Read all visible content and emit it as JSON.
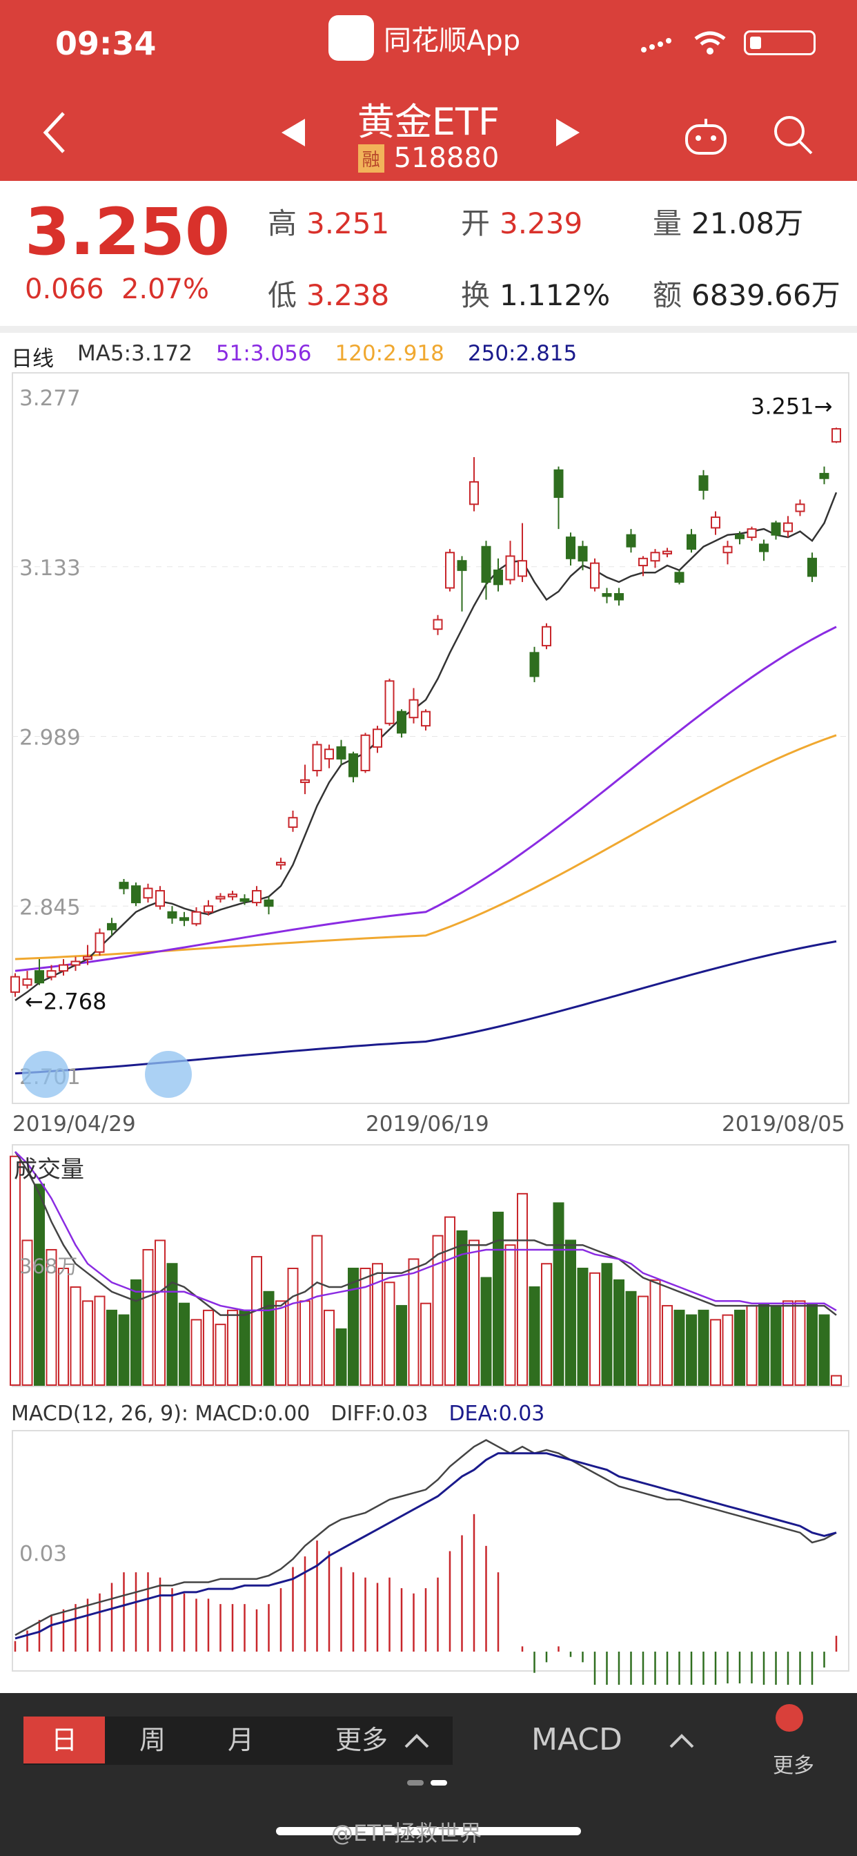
{
  "status": {
    "time": "09:34",
    "app_name": "同花顺App"
  },
  "header": {
    "title": "黄金ETF",
    "code": "518880",
    "rong_badge": "融"
  },
  "quote": {
    "price": "3.250",
    "change": "0.066",
    "change_pct": "2.07%",
    "high_label": "高",
    "high": "3.251",
    "open_label": "开",
    "open": "3.239",
    "volume_label": "量",
    "volume": "21.08万",
    "low_label": "低",
    "low": "3.238",
    "turnover_label": "换",
    "turnover": "1.112%",
    "amount_label": "额",
    "amount": "6839.66万"
  },
  "ma_legend": {
    "period": "日线",
    "ma5": "MA5:3.172",
    "ma51": "51:3.056",
    "ma120": "120:2.918",
    "ma250": "250:2.815",
    "colors": {
      "ma5": "#333333",
      "ma51": "#8a2be2",
      "ma120": "#f0a830",
      "ma250": "#1a1a8c"
    }
  },
  "chart_data": [
    {
      "type": "candlestick",
      "title": "日线",
      "y_ticks": [
        "3.277",
        "3.133",
        "2.989",
        "2.845",
        "2.701"
      ],
      "ylim": [
        2.701,
        3.277
      ],
      "high_marker": "3.251→",
      "low_marker": "←2.768",
      "dates": [
        "2019/04/29",
        "2019/06/19",
        "2019/08/05"
      ],
      "candles": [
        [
          2.772,
          2.785,
          2.788,
          2.768
        ],
        [
          2.778,
          2.783,
          2.79,
          2.775
        ],
        [
          2.79,
          2.78,
          2.8,
          2.778
        ],
        [
          2.785,
          2.79,
          2.795,
          2.782
        ],
        [
          2.79,
          2.795,
          2.8,
          2.786
        ],
        [
          2.795,
          2.798,
          2.802,
          2.79
        ],
        [
          2.8,
          2.802,
          2.812,
          2.795
        ],
        [
          2.806,
          2.822,
          2.826,
          2.803
        ],
        [
          2.83,
          2.825,
          2.835,
          2.82
        ],
        [
          2.865,
          2.86,
          2.868,
          2.855
        ],
        [
          2.862,
          2.848,
          2.865,
          2.845
        ],
        [
          2.852,
          2.86,
          2.864,
          2.848
        ],
        [
          2.845,
          2.858,
          2.862,
          2.842
        ],
        [
          2.84,
          2.835,
          2.845,
          2.83
        ],
        [
          2.835,
          2.833,
          2.84,
          2.828
        ],
        [
          2.83,
          2.84,
          2.844,
          2.828
        ],
        [
          2.84,
          2.845,
          2.85,
          2.837
        ],
        [
          2.852,
          2.853,
          2.856,
          2.848
        ],
        [
          2.853,
          2.855,
          2.858,
          2.85
        ],
        [
          2.851,
          2.85,
          2.855,
          2.846
        ],
        [
          2.848,
          2.858,
          2.862,
          2.845
        ],
        [
          2.85,
          2.845,
          2.853,
          2.838
        ],
        [
          2.88,
          2.882,
          2.886,
          2.876
        ],
        [
          2.912,
          2.92,
          2.926,
          2.908
        ],
        [
          2.95,
          2.952,
          2.965,
          2.94
        ],
        [
          2.96,
          2.982,
          2.985,
          2.955
        ],
        [
          2.97,
          2.978,
          2.982,
          2.962
        ],
        [
          2.98,
          2.97,
          2.986,
          2.965
        ],
        [
          2.974,
          2.955,
          2.976,
          2.95
        ],
        [
          2.96,
          2.99,
          2.992,
          2.958
        ],
        [
          2.98,
          2.995,
          2.998,
          2.975
        ],
        [
          3.0,
          3.036,
          3.038,
          2.998
        ],
        [
          3.01,
          2.992,
          3.012,
          2.988
        ],
        [
          3.005,
          3.02,
          3.03,
          3.0
        ],
        [
          2.998,
          3.01,
          3.012,
          2.994
        ],
        [
          3.08,
          3.088,
          3.092,
          3.075
        ],
        [
          3.115,
          3.145,
          3.148,
          3.112
        ],
        [
          3.138,
          3.13,
          3.142,
          3.095
        ],
        [
          3.186,
          3.205,
          3.226,
          3.18
        ],
        [
          3.15,
          3.12,
          3.155,
          3.105
        ],
        [
          3.13,
          3.118,
          3.14,
          3.112
        ],
        [
          3.122,
          3.142,
          3.155,
          3.118
        ],
        [
          3.125,
          3.138,
          3.17,
          3.12
        ],
        [
          3.06,
          3.04,
          3.065,
          3.035
        ],
        [
          3.066,
          3.082,
          3.085,
          3.063
        ],
        [
          3.215,
          3.192,
          3.218,
          3.165
        ],
        [
          3.158,
          3.14,
          3.162,
          3.134
        ],
        [
          3.15,
          3.138,
          3.155,
          3.13
        ],
        [
          3.115,
          3.136,
          3.14,
          3.112
        ],
        [
          3.11,
          3.108,
          3.115,
          3.102
        ],
        [
          3.11,
          3.105,
          3.115,
          3.1
        ],
        [
          3.16,
          3.15,
          3.165,
          3.145
        ],
        [
          3.134,
          3.14,
          3.142,
          3.125
        ],
        [
          3.138,
          3.145,
          3.148,
          3.132
        ],
        [
          3.144,
          3.146,
          3.149,
          3.141
        ],
        [
          3.128,
          3.12,
          3.13,
          3.118
        ],
        [
          3.16,
          3.148,
          3.165,
          3.145
        ],
        [
          3.21,
          3.198,
          3.215,
          3.19
        ],
        [
          3.166,
          3.175,
          3.18,
          3.16
        ],
        [
          3.145,
          3.15,
          3.155,
          3.135
        ],
        [
          3.16,
          3.157,
          3.163,
          3.152
        ],
        [
          3.158,
          3.165,
          3.167,
          3.155
        ],
        [
          3.152,
          3.146,
          3.156,
          3.138
        ],
        [
          3.17,
          3.16,
          3.172,
          3.156
        ],
        [
          3.163,
          3.17,
          3.176,
          3.158
        ],
        [
          3.18,
          3.186,
          3.19,
          3.176
        ],
        [
          3.14,
          3.125,
          3.145,
          3.12
        ],
        [
          3.212,
          3.208,
          3.218,
          3.203
        ],
        [
          3.239,
          3.25,
          3.251,
          3.238
        ]
      ],
      "ma5": [
        2.765,
        2.772,
        2.78,
        2.785,
        2.79,
        2.795,
        2.8,
        2.81,
        2.82,
        2.83,
        2.84,
        2.845,
        2.849,
        2.847,
        2.843,
        2.84,
        2.838,
        2.842,
        2.845,
        2.848,
        2.85,
        2.853,
        2.862,
        2.88,
        2.905,
        2.93,
        2.95,
        2.965,
        2.97,
        2.975,
        2.985,
        2.995,
        3.005,
        3.012,
        3.02,
        3.038,
        3.06,
        3.08,
        3.1,
        3.118,
        3.13,
        3.137,
        3.138,
        3.12,
        3.105,
        3.112,
        3.125,
        3.134,
        3.13,
        3.124,
        3.12,
        3.125,
        3.128,
        3.128,
        3.134,
        3.13,
        3.14,
        3.15,
        3.155,
        3.16,
        3.161,
        3.163,
        3.165,
        3.16,
        3.158,
        3.163,
        3.155,
        3.17,
        3.196
      ],
      "ma51": [
        2.79,
        2.84,
        3.082
      ],
      "ma120": [
        2.8,
        2.82,
        2.99
      ],
      "ma250": [
        2.703,
        2.73,
        2.815
      ]
    },
    {
      "type": "bar",
      "title": "成交量",
      "y_ticks": [
        "368万"
      ],
      "values": [
        0.98,
        0.62,
        0.86,
        0.58,
        0.5,
        0.42,
        0.36,
        0.38,
        0.32,
        0.3,
        0.45,
        0.58,
        0.62,
        0.52,
        0.35,
        0.28,
        0.32,
        0.26,
        0.32,
        0.32,
        0.55,
        0.4,
        0.36,
        0.5,
        0.36,
        0.64,
        0.32,
        0.24,
        0.5,
        0.5,
        0.52,
        0.44,
        0.34,
        0.54,
        0.35,
        0.64,
        0.72,
        0.66,
        0.62,
        0.46,
        0.74,
        0.6,
        0.82,
        0.42,
        0.52,
        0.78,
        0.62,
        0.5,
        0.48,
        0.52,
        0.45,
        0.4,
        0.38,
        0.45,
        0.34,
        0.32,
        0.3,
        0.32,
        0.28,
        0.3,
        0.32,
        0.34,
        0.35,
        0.34,
        0.36,
        0.36,
        0.35,
        0.3,
        0.04
      ],
      "ma_a": [
        1.0,
        0.92,
        0.82,
        0.7,
        0.6,
        0.52,
        0.48,
        0.44,
        0.4,
        0.38,
        0.36,
        0.38,
        0.4,
        0.44,
        0.42,
        0.38,
        0.34,
        0.3,
        0.3,
        0.3,
        0.32,
        0.34,
        0.34,
        0.38,
        0.4,
        0.44,
        0.42,
        0.42,
        0.44,
        0.46,
        0.48,
        0.48,
        0.48,
        0.5,
        0.52,
        0.56,
        0.58,
        0.6,
        0.6,
        0.6,
        0.62,
        0.62,
        0.62,
        0.62,
        0.6,
        0.6,
        0.6,
        0.6,
        0.58,
        0.56,
        0.54,
        0.5,
        0.46,
        0.44,
        0.42,
        0.4,
        0.38,
        0.36,
        0.34,
        0.34,
        0.34,
        0.34,
        0.34,
        0.34,
        0.34,
        0.34,
        0.34,
        0.34,
        0.3
      ],
      "ma_b": [
        1.0,
        0.95,
        0.88,
        0.8,
        0.7,
        0.6,
        0.52,
        0.48,
        0.44,
        0.42,
        0.4,
        0.4,
        0.4,
        0.4,
        0.4,
        0.38,
        0.36,
        0.34,
        0.33,
        0.32,
        0.32,
        0.32,
        0.33,
        0.35,
        0.36,
        0.38,
        0.39,
        0.4,
        0.41,
        0.42,
        0.44,
        0.46,
        0.47,
        0.48,
        0.5,
        0.52,
        0.54,
        0.56,
        0.57,
        0.58,
        0.58,
        0.58,
        0.58,
        0.58,
        0.58,
        0.58,
        0.58,
        0.58,
        0.56,
        0.55,
        0.54,
        0.52,
        0.48,
        0.46,
        0.44,
        0.42,
        0.4,
        0.38,
        0.36,
        0.36,
        0.36,
        0.35,
        0.35,
        0.35,
        0.35,
        0.35,
        0.35,
        0.35,
        0.32
      ]
    },
    {
      "type": "line",
      "title": "MACD(12, 26, 9)",
      "y_ticks": [
        "0.03"
      ],
      "macd_label": "MACD(12, 26, 9): MACD:0.00",
      "diff_label": "DIFF:0.03",
      "dea_label": "DEA:0.03",
      "diff": [
        0.005,
        0.007,
        0.009,
        0.011,
        0.012,
        0.013,
        0.014,
        0.015,
        0.016,
        0.017,
        0.018,
        0.019,
        0.02,
        0.02,
        0.021,
        0.021,
        0.021,
        0.022,
        0.022,
        0.022,
        0.022,
        0.023,
        0.025,
        0.028,
        0.032,
        0.035,
        0.038,
        0.04,
        0.041,
        0.042,
        0.044,
        0.046,
        0.047,
        0.048,
        0.049,
        0.052,
        0.056,
        0.059,
        0.062,
        0.064,
        0.062,
        0.06,
        0.062,
        0.06,
        0.061,
        0.06,
        0.058,
        0.056,
        0.054,
        0.052,
        0.05,
        0.049,
        0.048,
        0.047,
        0.046,
        0.046,
        0.045,
        0.044,
        0.043,
        0.042,
        0.041,
        0.04,
        0.039,
        0.038,
        0.037,
        0.036,
        0.033,
        0.034,
        0.036
      ],
      "dea": [
        0.004,
        0.005,
        0.006,
        0.008,
        0.009,
        0.01,
        0.011,
        0.012,
        0.013,
        0.014,
        0.015,
        0.016,
        0.017,
        0.017,
        0.018,
        0.018,
        0.019,
        0.019,
        0.019,
        0.02,
        0.02,
        0.02,
        0.021,
        0.022,
        0.024,
        0.026,
        0.029,
        0.031,
        0.033,
        0.035,
        0.037,
        0.039,
        0.041,
        0.043,
        0.045,
        0.047,
        0.05,
        0.053,
        0.055,
        0.058,
        0.06,
        0.06,
        0.06,
        0.06,
        0.06,
        0.059,
        0.058,
        0.057,
        0.056,
        0.055,
        0.053,
        0.052,
        0.051,
        0.05,
        0.049,
        0.048,
        0.047,
        0.046,
        0.045,
        0.044,
        0.043,
        0.042,
        0.041,
        0.04,
        0.039,
        0.038,
        0.036,
        0.035,
        0.036
      ],
      "hist": [
        0.002,
        0.004,
        0.006,
        0.007,
        0.008,
        0.009,
        0.01,
        0.011,
        0.013,
        0.015,
        0.015,
        0.015,
        0.014,
        0.012,
        0.011,
        0.01,
        0.01,
        0.009,
        0.009,
        0.009,
        0.008,
        0.009,
        0.012,
        0.016,
        0.018,
        0.021,
        0.019,
        0.016,
        0.015,
        0.014,
        0.013,
        0.014,
        0.012,
        0.011,
        0.012,
        0.014,
        0.019,
        0.022,
        0.026,
        0.02,
        0.015,
        0.0,
        0.001,
        -0.004,
        -0.002,
        0.001,
        -0.001,
        -0.002,
        -0.008,
        -0.01,
        -0.011,
        -0.01,
        -0.01,
        -0.01,
        -0.009,
        -0.012,
        -0.011,
        -0.01,
        -0.008,
        -0.006,
        -0.006,
        -0.006,
        -0.007,
        -0.008,
        -0.008,
        -0.008,
        -0.009,
        -0.003,
        0.003
      ]
    }
  ],
  "bottom": {
    "periods": [
      "日",
      "周",
      "月",
      "更多"
    ],
    "indicator": "MACD",
    "more": "更多"
  },
  "watermark": "@ETF拯救世界"
}
